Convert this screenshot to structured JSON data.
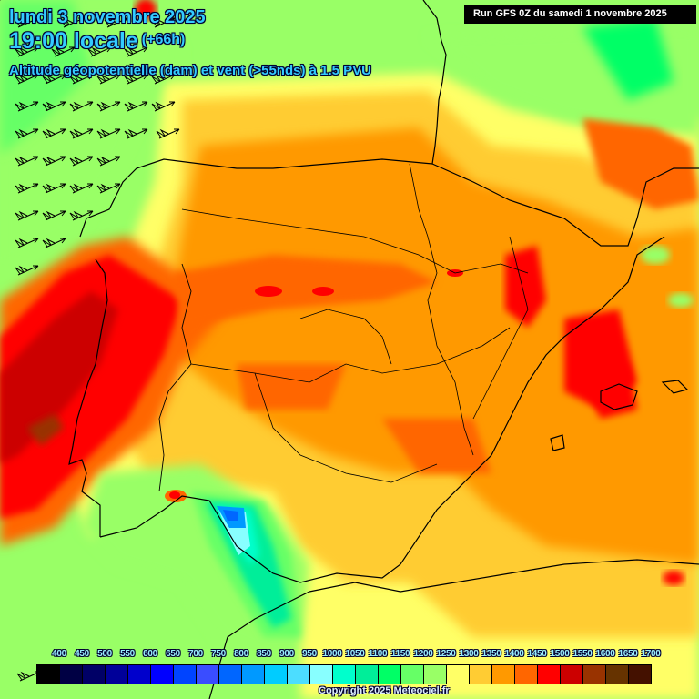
{
  "header": {
    "date": "lundi 3 novembre 2025",
    "time": "19:00 locale",
    "lead": "(+66h)",
    "parameter": "Altitude géopotentielle (dam) et vent (>55nds) à 1.5 PVU"
  },
  "run_info": "Run GFS 0Z du samedi 1 novembre 2025",
  "colorbar": {
    "labels": [
      "400",
      "450",
      "500",
      "550",
      "600",
      "650",
      "700",
      "750",
      "800",
      "850",
      "900",
      "950",
      "1000",
      "1050",
      "1100",
      "1150",
      "1200",
      "1250",
      "1300",
      "1350",
      "1400",
      "1450",
      "1500",
      "1550",
      "1600",
      "1650",
      "1700"
    ],
    "colors": [
      "#000000",
      "#000044",
      "#000066",
      "#000099",
      "#0000cc",
      "#0000ff",
      "#0044ff",
      "#3a4dff",
      "#0066ff",
      "#0099ff",
      "#00ccff",
      "#4cddff",
      "#88ffff",
      "#00ffcc",
      "#00ee99",
      "#00ff66",
      "#66ff66",
      "#99ff66",
      "#ffff66",
      "#ffcc33",
      "#ff9900",
      "#ff6600",
      "#ff0000",
      "#cc0000",
      "#993300",
      "#663300",
      "#441100"
    ]
  },
  "copyright": "Copyright 2025 Meteociel.fr",
  "map": {
    "region": "Iberian Peninsula",
    "features": [
      "Portugal",
      "Spain",
      "Balearic Islands",
      "SW France",
      "Bay of Biscay",
      "Strait of Gibraltar"
    ],
    "field_colors": {
      "green_light": "#99ff66",
      "green": "#66ff66",
      "green_bright": "#00ff66",
      "yellow": "#ffff66",
      "yellow_orange": "#ffcc33",
      "orange": "#ff9900",
      "orange_dark": "#ff6600",
      "red": "#ff0000",
      "red_dark": "#cc0000",
      "brown": "#993300",
      "cyan": "#00ffcc",
      "light_cyan": "#88ffff",
      "blue": "#0099ff"
    }
  }
}
